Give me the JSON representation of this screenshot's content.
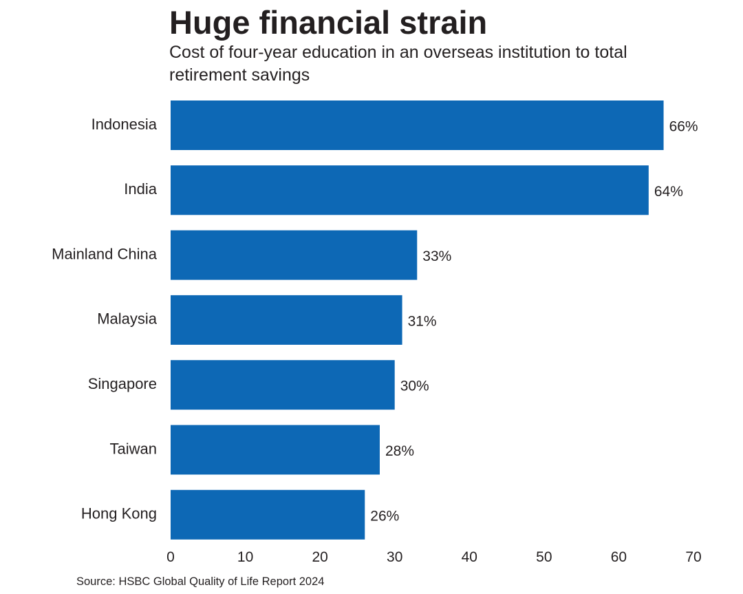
{
  "chart_data": {
    "type": "bar",
    "orientation": "horizontal",
    "title": "Huge financial strain",
    "subtitle": "Cost of four-year education in an overseas institution to total retirement savings",
    "categories": [
      "Indonesia",
      "India",
      "Mainland China",
      "Malaysia",
      "Singapore",
      "Taiwan",
      "Hong Kong"
    ],
    "values": [
      66,
      64,
      33,
      31,
      30,
      28,
      26
    ],
    "value_labels": [
      "66%",
      "64%",
      "33%",
      "31%",
      "30%",
      "28%",
      "26%"
    ],
    "xlim": [
      0,
      70
    ],
    "xticks": [
      0,
      10,
      20,
      30,
      40,
      50,
      60,
      70
    ],
    "xlabel": "",
    "ylabel": "",
    "grid": false,
    "legend": "none",
    "bar_color": "#0d68b5",
    "source": "Source: HSBC Global Quality of Life Report 2024"
  }
}
